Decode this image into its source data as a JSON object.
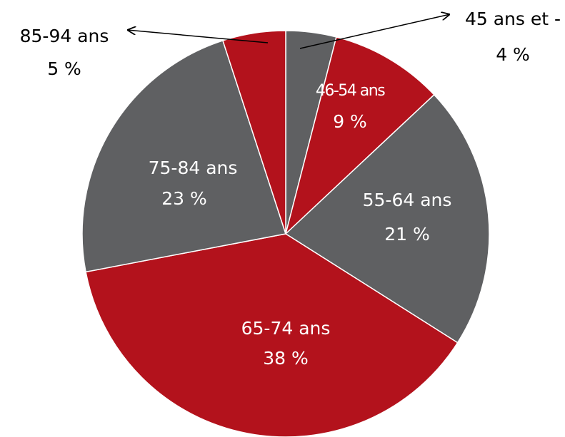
{
  "chart_data": {
    "type": "pie",
    "categories": [
      "45 ans et -",
      "46-54 ans",
      "55-64 ans",
      "65-74 ans",
      "75-84 ans",
      "85-94 ans"
    ],
    "values": [
      4,
      9,
      21,
      38,
      23,
      5
    ],
    "value_labels": [
      "4 %",
      "9 %",
      "21 %",
      "38 %",
      "23 %",
      "5 %"
    ],
    "colors": [
      "#5f6062",
      "#b3121c",
      "#5f6062",
      "#b3121c",
      "#5f6062",
      "#b3121c"
    ]
  }
}
